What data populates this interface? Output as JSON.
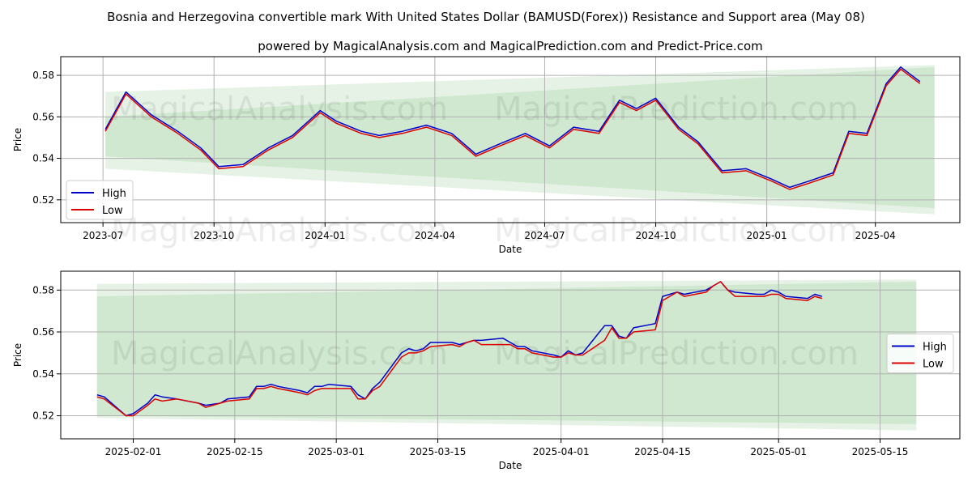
{
  "header": {
    "title": "Bosnia and Herzegovina convertible mark With United States Dollar (BAMUSD(Forex)) Resistance and Support area (May 08)",
    "subtitle": "powered by MagicalAnalysis.com and MagicalPrediction.com and Predict-Price.com"
  },
  "watermarks": [
    "MagicalAnalysis.com",
    "MagicalPrediction.com"
  ],
  "colors": {
    "high": "#0000cc",
    "low": "#dd0000",
    "band": "#8fcc8f"
  },
  "chart_data": [
    {
      "type": "line",
      "xlabel": "Date",
      "ylabel": "Price",
      "x_ticks": [
        "2023-07",
        "2023-10",
        "2024-01",
        "2024-04",
        "2024-07",
        "2024-10",
        "2025-01",
        "2025-04"
      ],
      "y_ticks": [
        "0.52",
        "0.54",
        "0.56",
        "0.58"
      ],
      "ylim": [
        0.509,
        0.589
      ],
      "legend": "upper-left",
      "grid": true,
      "x": [
        "2023-07-03",
        "2023-07-20",
        "2023-08-10",
        "2023-09-01",
        "2023-09-20",
        "2023-10-05",
        "2023-10-25",
        "2023-11-15",
        "2023-12-05",
        "2023-12-28",
        "2024-01-10",
        "2024-01-31",
        "2024-02-15",
        "2024-03-05",
        "2024-03-25",
        "2024-04-15",
        "2024-05-05",
        "2024-05-25",
        "2024-06-15",
        "2024-07-05",
        "2024-07-25",
        "2024-08-15",
        "2024-09-01",
        "2024-09-15",
        "2024-10-01",
        "2024-10-20",
        "2024-11-05",
        "2024-11-25",
        "2024-12-15",
        "2025-01-05",
        "2025-01-20",
        "2025-02-05",
        "2025-02-25",
        "2025-03-10",
        "2025-03-25",
        "2025-04-10",
        "2025-04-22",
        "2025-05-08"
      ],
      "series": [
        {
          "name": "High",
          "values": [
            0.554,
            0.572,
            0.561,
            0.553,
            0.545,
            0.536,
            0.537,
            0.545,
            0.551,
            0.563,
            0.558,
            0.553,
            0.551,
            0.553,
            0.556,
            0.552,
            0.542,
            0.547,
            0.552,
            0.546,
            0.555,
            0.553,
            0.568,
            0.564,
            0.569,
            0.555,
            0.548,
            0.534,
            0.535,
            0.53,
            0.526,
            0.529,
            0.533,
            0.553,
            0.552,
            0.576,
            0.584,
            0.577
          ]
        },
        {
          "name": "Low",
          "values": [
            0.553,
            0.571,
            0.56,
            0.552,
            0.544,
            0.535,
            0.536,
            0.544,
            0.55,
            0.562,
            0.557,
            0.552,
            0.55,
            0.552,
            0.555,
            0.551,
            0.541,
            0.546,
            0.551,
            0.545,
            0.554,
            0.552,
            0.567,
            0.563,
            0.568,
            0.554,
            0.547,
            0.533,
            0.534,
            0.529,
            0.525,
            0.528,
            0.532,
            0.552,
            0.551,
            0.575,
            0.583,
            0.576
          ]
        }
      ],
      "bands": [
        {
          "name": "Resistance band",
          "color": "#dceedc",
          "x": [
            "2023-07-03",
            "2025-05-20"
          ],
          "upper": [
            0.572,
            0.585
          ],
          "lower": [
            0.535,
            0.513
          ]
        },
        {
          "name": "Support band",
          "color": "#c6e4c6",
          "x": [
            "2023-07-03",
            "2025-05-20"
          ],
          "upper": [
            0.56,
            0.584
          ],
          "lower": [
            0.541,
            0.516
          ]
        }
      ]
    },
    {
      "type": "line",
      "xlabel": "Date",
      "ylabel": "Price",
      "x_ticks": [
        "2025-02-01",
        "2025-02-15",
        "2025-03-01",
        "2025-03-15",
        "2025-04-01",
        "2025-04-15",
        "2025-05-01",
        "2025-05-15"
      ],
      "y_ticks": [
        "0.52",
        "0.54",
        "0.56",
        "0.58"
      ],
      "ylim": [
        0.509,
        0.589
      ],
      "legend": "center-right",
      "grid": true,
      "x": [
        "2025-01-27",
        "2025-01-28",
        "2025-01-31",
        "2025-02-01",
        "2025-02-03",
        "2025-02-04",
        "2025-02-05",
        "2025-02-07",
        "2025-02-10",
        "2025-02-11",
        "2025-02-13",
        "2025-02-14",
        "2025-02-17",
        "2025-02-18",
        "2025-02-19",
        "2025-02-20",
        "2025-02-21",
        "2025-02-24",
        "2025-02-25",
        "2025-02-26",
        "2025-02-27",
        "2025-02-28",
        "2025-03-03",
        "2025-03-04",
        "2025-03-05",
        "2025-03-06",
        "2025-03-07",
        "2025-03-10",
        "2025-03-11",
        "2025-03-12",
        "2025-03-13",
        "2025-03-14",
        "2025-03-17",
        "2025-03-18",
        "2025-03-19",
        "2025-03-20",
        "2025-03-21",
        "2025-03-24",
        "2025-03-25",
        "2025-03-26",
        "2025-03-27",
        "2025-03-28",
        "2025-03-31",
        "2025-04-01",
        "2025-04-02",
        "2025-04-03",
        "2025-04-04",
        "2025-04-07",
        "2025-04-08",
        "2025-04-09",
        "2025-04-10",
        "2025-04-11",
        "2025-04-14",
        "2025-04-15",
        "2025-04-16",
        "2025-04-17",
        "2025-04-18",
        "2025-04-21",
        "2025-04-22",
        "2025-04-23",
        "2025-04-24",
        "2025-04-25",
        "2025-04-28",
        "2025-04-29",
        "2025-04-30",
        "2025-05-01",
        "2025-05-02",
        "2025-05-05",
        "2025-05-06",
        "2025-05-07"
      ],
      "series": [
        {
          "name": "High",
          "values": [
            0.53,
            0.529,
            0.52,
            0.521,
            0.526,
            0.53,
            0.529,
            0.528,
            0.526,
            0.525,
            0.526,
            0.528,
            0.529,
            0.534,
            0.534,
            0.535,
            0.534,
            0.532,
            0.531,
            0.534,
            0.534,
            0.535,
            0.534,
            0.53,
            0.528,
            0.533,
            0.536,
            0.55,
            0.552,
            0.551,
            0.552,
            0.555,
            0.555,
            0.554,
            0.555,
            0.556,
            0.556,
            0.557,
            0.555,
            0.553,
            0.553,
            0.551,
            0.549,
            0.548,
            0.551,
            0.549,
            0.55,
            0.563,
            0.563,
            0.558,
            0.557,
            0.562,
            0.564,
            0.577,
            0.578,
            0.579,
            0.578,
            0.58,
            0.582,
            0.584,
            0.58,
            0.579,
            0.578,
            0.578,
            0.58,
            0.579,
            0.577,
            0.576,
            0.578,
            0.577
          ]
        },
        {
          "name": "Low",
          "values": [
            0.529,
            0.528,
            0.52,
            0.52,
            0.525,
            0.528,
            0.527,
            0.528,
            0.526,
            0.524,
            0.526,
            0.527,
            0.528,
            0.533,
            0.533,
            0.534,
            0.533,
            0.531,
            0.53,
            0.532,
            0.533,
            0.533,
            0.533,
            0.528,
            0.528,
            0.532,
            0.534,
            0.548,
            0.55,
            0.55,
            0.551,
            0.553,
            0.554,
            0.553,
            0.555,
            0.556,
            0.554,
            0.554,
            0.554,
            0.552,
            0.552,
            0.55,
            0.548,
            0.548,
            0.55,
            0.549,
            0.549,
            0.556,
            0.562,
            0.557,
            0.557,
            0.56,
            0.561,
            0.575,
            0.577,
            0.579,
            0.577,
            0.579,
            0.582,
            0.584,
            0.58,
            0.577,
            0.577,
            0.577,
            0.578,
            0.578,
            0.576,
            0.575,
            0.577,
            0.576
          ]
        }
      ],
      "bands": [
        {
          "name": "Resistance band",
          "color": "#dceedc",
          "x": [
            "2025-01-27",
            "2025-05-20"
          ],
          "upper": [
            0.583,
            0.585
          ],
          "lower": [
            0.519,
            0.513
          ]
        },
        {
          "name": "Support band",
          "color": "#c6e4c6",
          "x": [
            "2025-01-27",
            "2025-05-20"
          ],
          "upper": [
            0.577,
            0.584
          ],
          "lower": [
            0.52,
            0.516
          ]
        }
      ]
    }
  ]
}
